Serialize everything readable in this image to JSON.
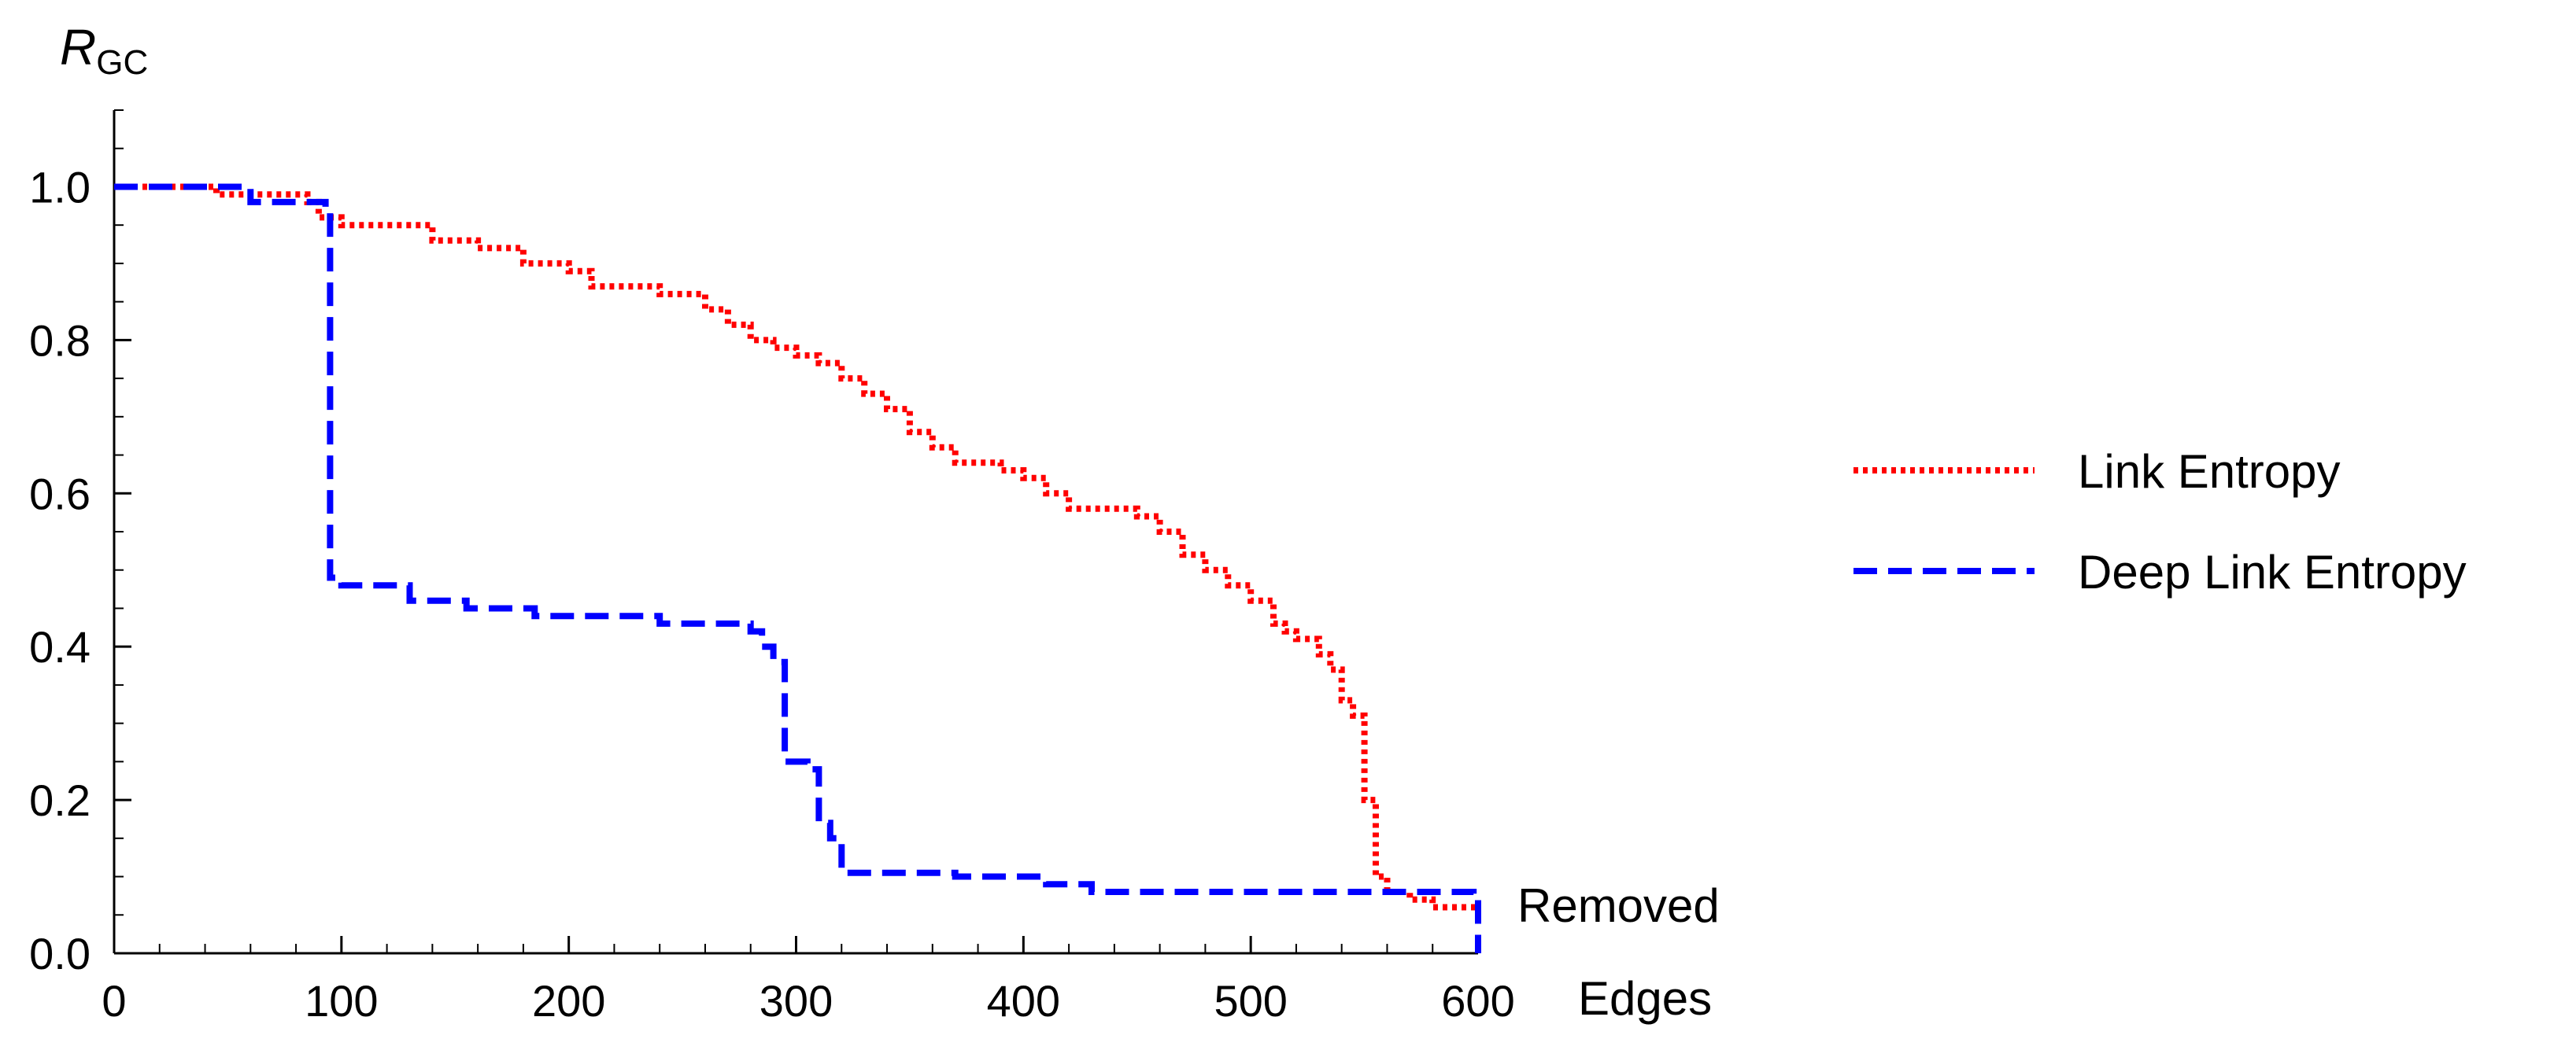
{
  "chart_data": {
    "type": "line",
    "title": "",
    "xlabel": "Removed Edges",
    "xlabel_lines": [
      "Removed",
      "Edges"
    ],
    "ylabel": "R_GC",
    "ylabel_main": "R",
    "ylabel_sub": "GC",
    "xlim": [
      0,
      600
    ],
    "ylim": [
      0,
      1.1
    ],
    "xticks": [
      0,
      100,
      200,
      300,
      400,
      500,
      600
    ],
    "xtick_labels": [
      "0",
      "100",
      "200",
      "300",
      "400",
      "500",
      "600"
    ],
    "yticks": [
      0,
      0.2,
      0.4,
      0.6,
      0.8,
      1.0
    ],
    "ytick_labels": [
      "0.0",
      "0.2",
      "0.4",
      "0.6",
      "0.8",
      "1.0"
    ],
    "grid": false,
    "legend_position": "right",
    "series": [
      {
        "name": "Link Entropy",
        "color": "#ff0000",
        "dash": "dotted",
        "step": true,
        "x": [
          0,
          45,
          60,
          70,
          85,
          90,
          95,
          100,
          110,
          140,
          160,
          180,
          200,
          210,
          240,
          250,
          260,
          270,
          280,
          290,
          300,
          310,
          320,
          330,
          340,
          350,
          360,
          370,
          380,
          390,
          400,
          410,
          420,
          430,
          440,
          450,
          460,
          470,
          480,
          490,
          500,
          510,
          515,
          520,
          530,
          535,
          540,
          545,
          550,
          555,
          560,
          570,
          580,
          590,
          600
        ],
        "y": [
          1.0,
          0.99,
          0.99,
          0.99,
          0.98,
          0.96,
          0.96,
          0.95,
          0.95,
          0.93,
          0.92,
          0.9,
          0.89,
          0.87,
          0.86,
          0.86,
          0.84,
          0.82,
          0.8,
          0.79,
          0.78,
          0.77,
          0.75,
          0.73,
          0.71,
          0.68,
          0.66,
          0.64,
          0.64,
          0.63,
          0.62,
          0.6,
          0.58,
          0.58,
          0.58,
          0.57,
          0.55,
          0.52,
          0.5,
          0.48,
          0.46,
          0.43,
          0.42,
          0.41,
          0.39,
          0.37,
          0.33,
          0.31,
          0.2,
          0.1,
          0.08,
          0.07,
          0.06,
          0.06,
          0.05
        ]
      },
      {
        "name": "Deep Link Entropy",
        "color": "#0000ff",
        "dash": "dashed",
        "step": true,
        "x": [
          0,
          60,
          85,
          93,
          95,
          100,
          130,
          155,
          185,
          240,
          280,
          285,
          290,
          295,
          305,
          310,
          315,
          320,
          370,
          410,
          430,
          470,
          590,
          598,
          600
        ],
        "y": [
          1.0,
          0.98,
          0.98,
          0.97,
          0.49,
          0.48,
          0.46,
          0.45,
          0.44,
          0.43,
          0.42,
          0.4,
          0.38,
          0.25,
          0.24,
          0.17,
          0.15,
          0.105,
          0.1,
          0.09,
          0.08,
          0.08,
          0.08,
          0.07,
          0.0
        ]
      }
    ]
  }
}
